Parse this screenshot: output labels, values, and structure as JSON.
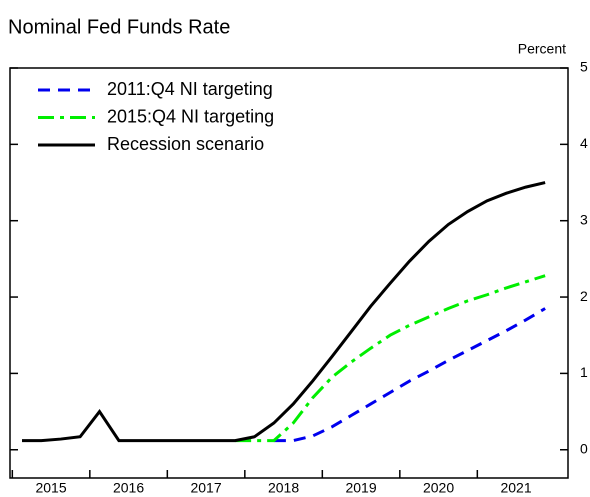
{
  "chart_data": {
    "type": "line",
    "title": "Nominal Fed Funds Rate",
    "y_unit": "Percent",
    "x": [
      2015.125,
      2015.375,
      2015.625,
      2015.875,
      2016.125,
      2016.375,
      2016.625,
      2016.875,
      2017.125,
      2017.375,
      2017.625,
      2017.875,
      2018.125,
      2018.375,
      2018.625,
      2018.875,
      2019.125,
      2019.375,
      2019.625,
      2019.875,
      2020.125,
      2020.375,
      2020.625,
      2020.875,
      2021.125,
      2021.375,
      2021.625,
      2021.875
    ],
    "series": [
      {
        "name": "2011:Q4 NI targeting",
        "color": "#0000ee",
        "dash": "12 8",
        "values": [
          null,
          null,
          null,
          null,
          null,
          null,
          null,
          null,
          null,
          null,
          null,
          null,
          null,
          0.12,
          0.12,
          0.18,
          0.3,
          0.45,
          0.6,
          0.75,
          0.9,
          1.03,
          1.17,
          1.3,
          1.43,
          1.56,
          1.7,
          1.85
        ]
      },
      {
        "name": "2015:Q4 NI targeting",
        "color": "#00ee00",
        "dash": "16 6 4 6",
        "values": [
          null,
          null,
          null,
          null,
          null,
          null,
          null,
          null,
          null,
          null,
          null,
          0.12,
          0.12,
          0.12,
          0.35,
          0.68,
          0.95,
          1.15,
          1.33,
          1.5,
          1.63,
          1.74,
          1.85,
          1.95,
          2.03,
          2.12,
          2.2,
          2.28
        ]
      },
      {
        "name": "Recession scenario",
        "color": "#000000",
        "dash": "none",
        "values": [
          0.12,
          0.12,
          0.14,
          0.17,
          0.5,
          0.12,
          0.12,
          0.12,
          0.12,
          0.12,
          0.12,
          0.12,
          0.17,
          0.35,
          0.6,
          0.9,
          1.22,
          1.55,
          1.88,
          2.18,
          2.47,
          2.73,
          2.95,
          3.12,
          3.26,
          3.36,
          3.44,
          3.5
        ]
      }
    ],
    "xlim": [
      2014.97,
      2022.17
    ],
    "xticks": [
      2015,
      2016,
      2017,
      2018,
      2019,
      2020,
      2021
    ],
    "ylim": [
      -0.37,
      5
    ],
    "yticks": [
      0,
      1,
      2,
      3,
      4,
      5
    ]
  }
}
